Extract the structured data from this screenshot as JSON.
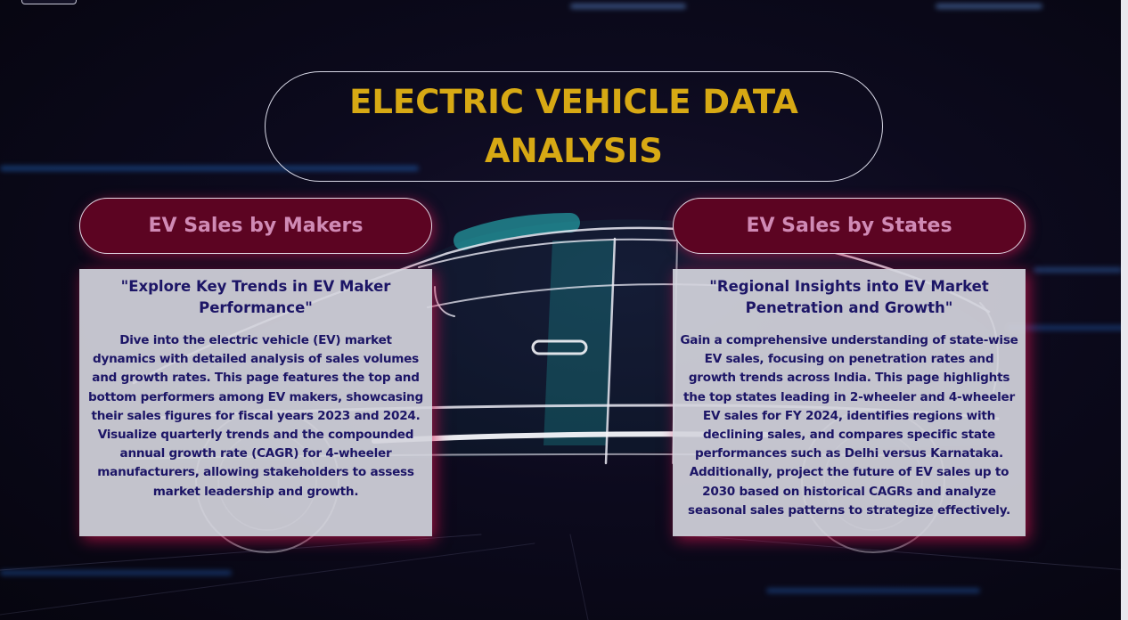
{
  "page": {
    "title": "ELECTRIC VEHICLE DATA ANALYSIS"
  },
  "sections": [
    {
      "button_label": "EV Sales by Makers",
      "heading": "\"Explore Key Trends in EV Maker Performance\"",
      "body": "Dive into the electric vehicle (EV) market dynamics with detailed analysis of sales volumes and growth rates. This page features the top and bottom performers among EV makers, showcasing their sales figures for fiscal years 2023 and 2024. Visualize quarterly trends and the compounded annual growth rate (CAGR) for 4-wheeler manufacturers, allowing stakeholders to assess market leadership and growth."
    },
    {
      "button_label": "EV Sales by States",
      "heading": "\"Regional Insights into EV Market Penetration and Growth\"",
      "body": "Gain a comprehensive understanding of state-wise EV sales, focusing on penetration rates and growth trends across India. This page highlights the top states leading in 2-wheeler and 4-wheeler EV sales for FY 2024, identifies regions with declining sales, and compares specific state performances such as Delhi versus Karnataka. Additionally, project the future of EV sales up to 2030 based on historical CAGRs and analyze seasonal sales patterns to strategize effectively."
    }
  ],
  "colors": {
    "title": "#d7a914",
    "button_bg": "#5c0422",
    "button_text": "#d08ab5",
    "card_text": "#1c1566",
    "glow": "#dc1450"
  },
  "icons": {
    "background": "car-outline-illustration"
  }
}
